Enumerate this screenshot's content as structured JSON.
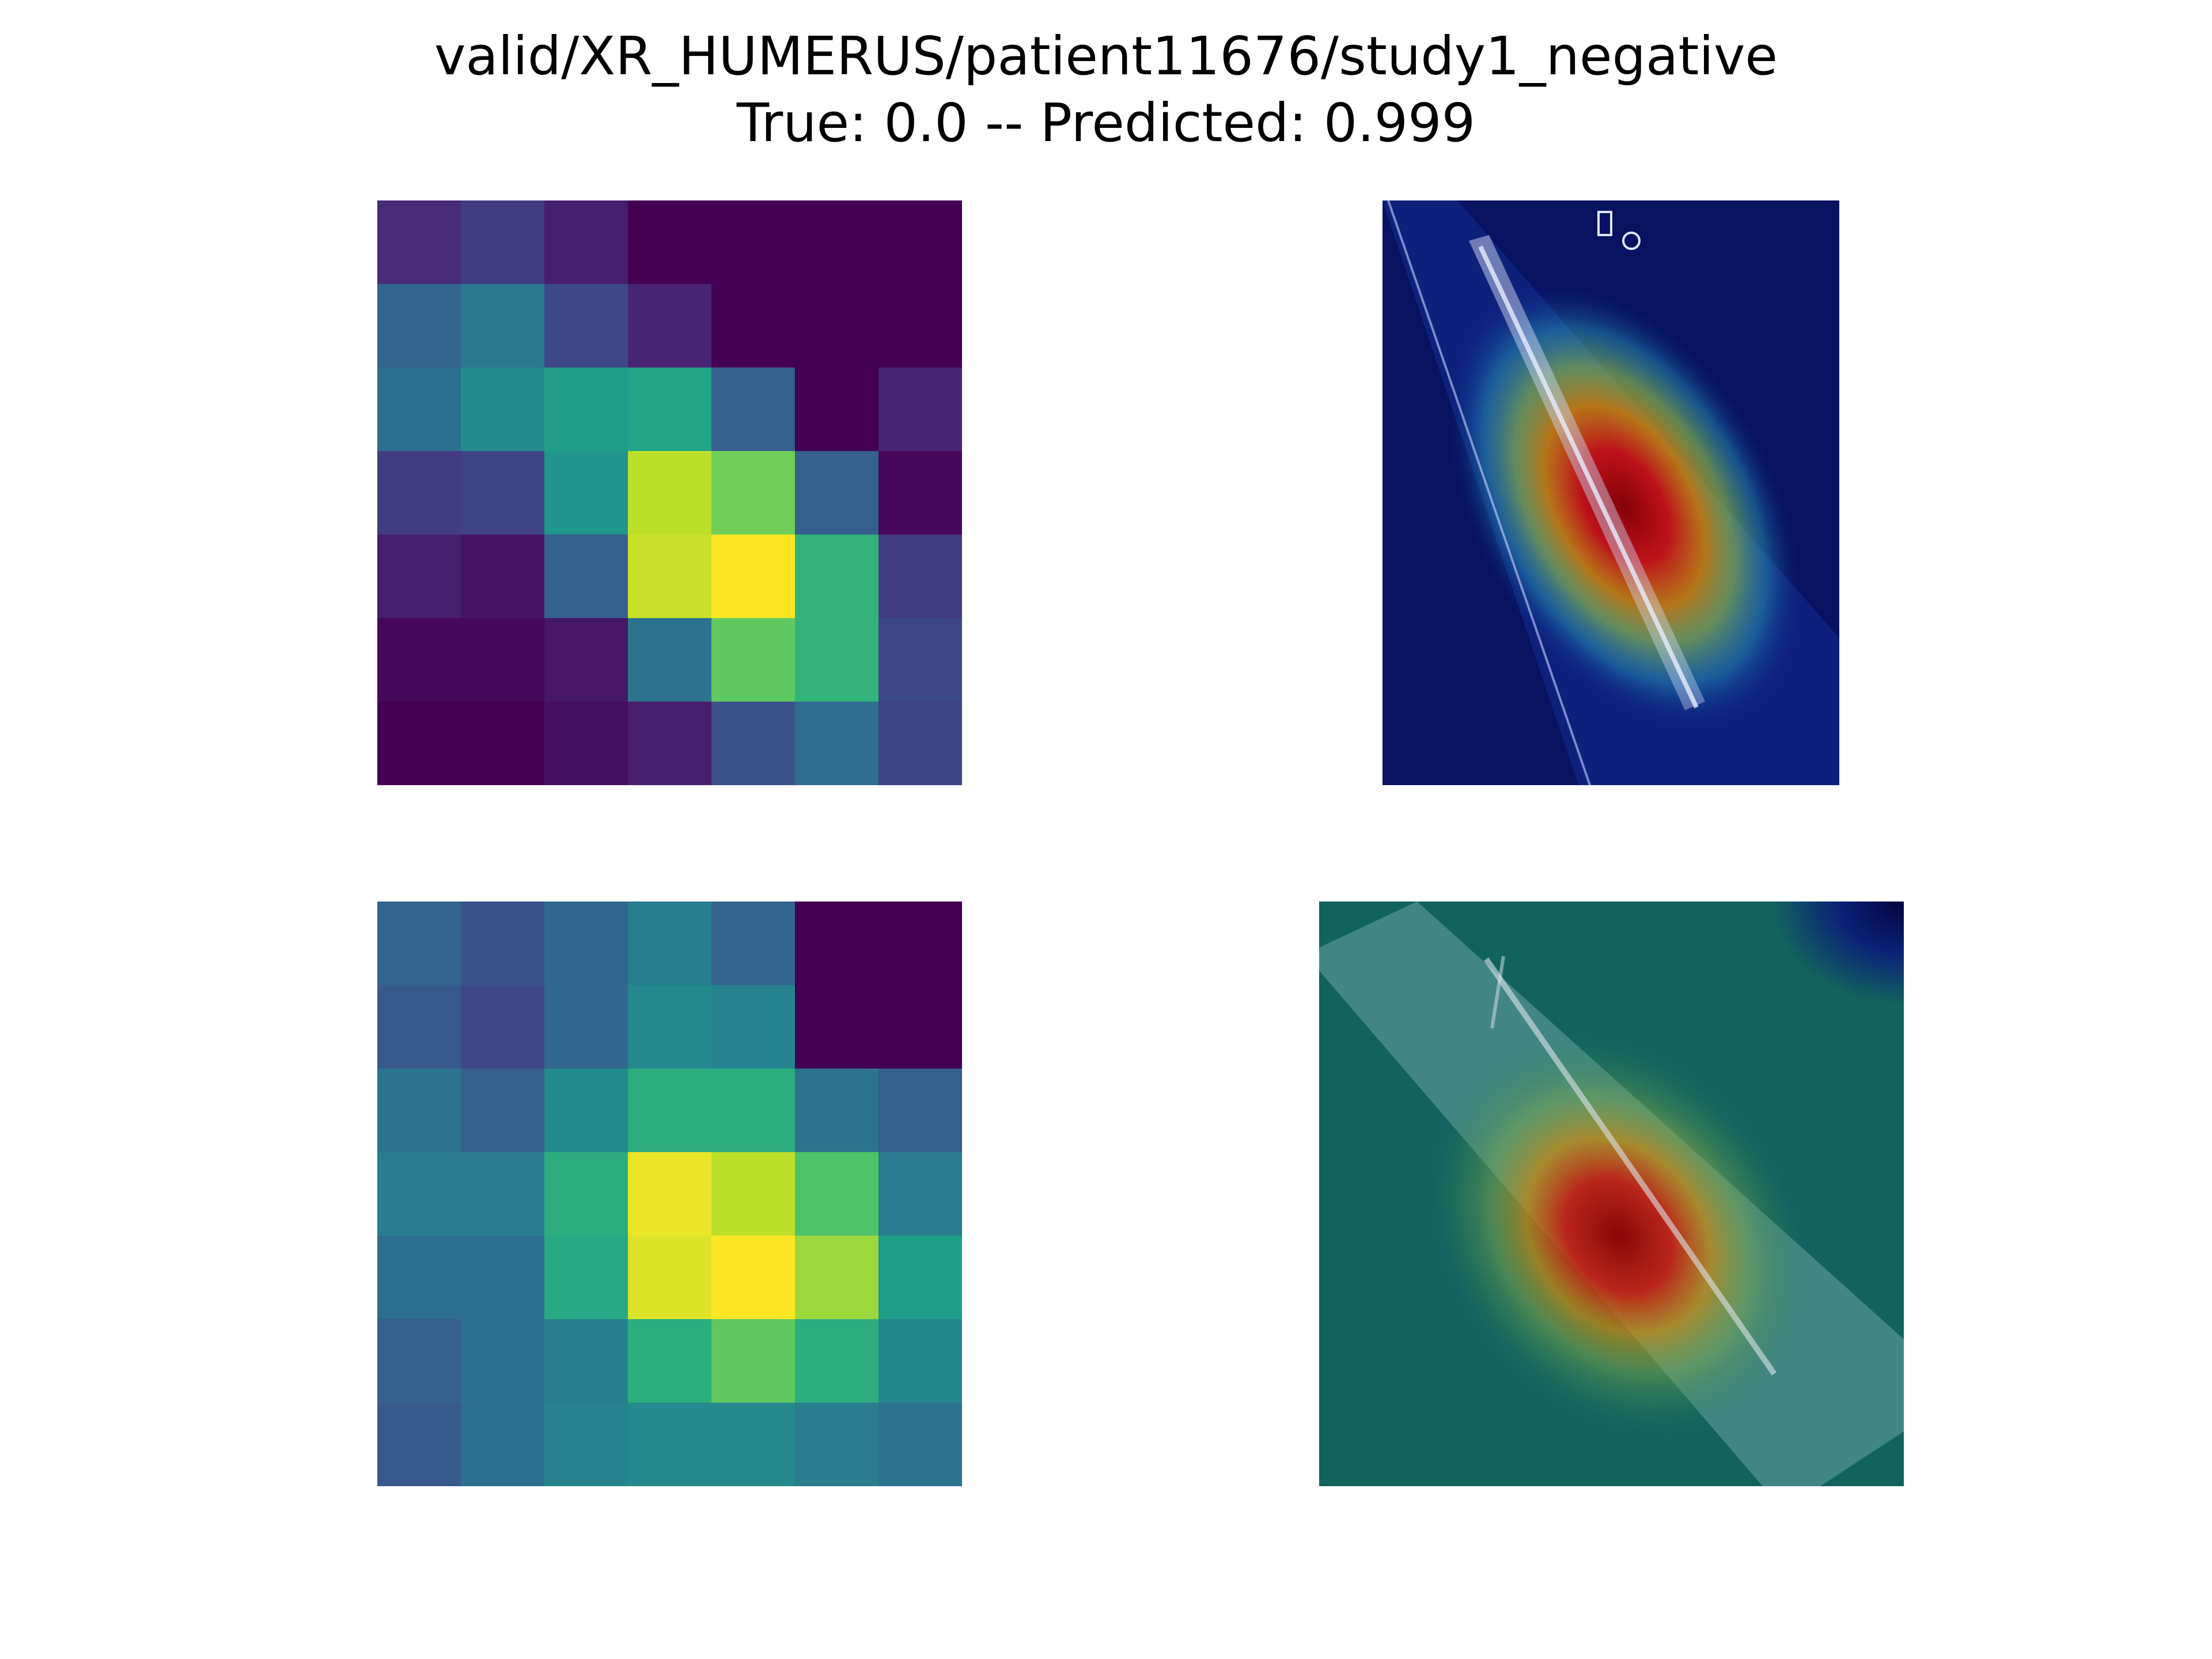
{
  "title": {
    "line1": "valid/XR_HUMERUS/patient11676/study1_negative",
    "line2": "True: 0.0 -- Predicted: 0.999"
  },
  "colormaps": {
    "viridis": [
      "#440154",
      "#482878",
      "#3e4989",
      "#31688e",
      "#26828e",
      "#1f9e89",
      "#35b779",
      "#6ece58",
      "#b5de2b",
      "#fde725"
    ],
    "jet": [
      "#00007f",
      "#0000ff",
      "#007fff",
      "#00ffff",
      "#7fff7f",
      "#ffff00",
      "#ff7f00",
      "#ff0000",
      "#7f0000"
    ]
  },
  "chart_data": [
    {
      "type": "heatmap",
      "name": "activation-map-1",
      "rows": 7,
      "cols": 7,
      "vmin": 0,
      "vmax": 1,
      "values": [
        [
          0.12,
          0.18,
          0.08,
          0.0,
          0.0,
          0.0,
          0.0
        ],
        [
          0.32,
          0.4,
          0.22,
          0.1,
          0.0,
          0.0,
          0.0
        ],
        [
          0.36,
          0.48,
          0.55,
          0.58,
          0.3,
          0.0,
          0.1
        ],
        [
          0.18,
          0.2,
          0.52,
          0.9,
          0.78,
          0.3,
          0.02
        ],
        [
          0.08,
          0.05,
          0.3,
          0.92,
          1.0,
          0.65,
          0.18
        ],
        [
          0.02,
          0.02,
          0.06,
          0.38,
          0.75,
          0.65,
          0.22
        ],
        [
          0.0,
          0.0,
          0.04,
          0.08,
          0.25,
          0.35,
          0.2
        ]
      ]
    },
    {
      "type": "heatmap",
      "name": "activation-map-2",
      "rows": 7,
      "cols": 7,
      "vmin": 0,
      "vmax": 1,
      "values": [
        [
          0.32,
          0.25,
          0.33,
          0.43,
          0.32,
          0.0,
          0.0
        ],
        [
          0.28,
          0.22,
          0.33,
          0.47,
          0.45,
          0.0,
          0.0
        ],
        [
          0.38,
          0.3,
          0.48,
          0.62,
          0.62,
          0.38,
          0.3
        ],
        [
          0.42,
          0.42,
          0.62,
          0.97,
          0.9,
          0.72,
          0.42
        ],
        [
          0.36,
          0.36,
          0.6,
          0.95,
          1.0,
          0.85,
          0.55
        ],
        [
          0.3,
          0.36,
          0.43,
          0.62,
          0.75,
          0.62,
          0.46
        ],
        [
          0.28,
          0.36,
          0.45,
          0.47,
          0.47,
          0.42,
          0.38
        ]
      ]
    }
  ]
}
